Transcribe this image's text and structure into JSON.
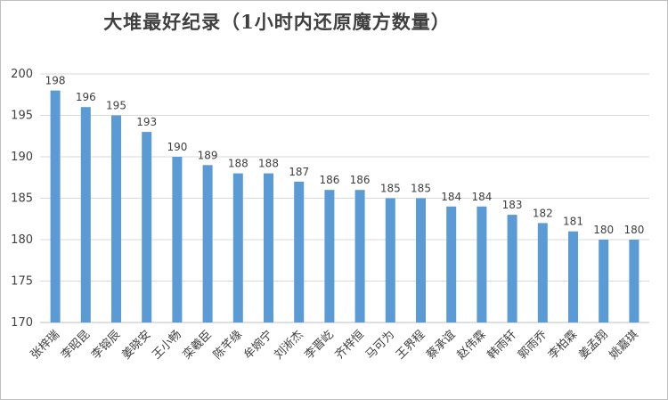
{
  "chart_data": {
    "type": "bar",
    "title": "大堆最好纪录（1小时内还原魔方数量）",
    "xlabel": "",
    "ylabel": "",
    "categories": [
      "张梓瑞",
      "李昭昆",
      "李镕辰",
      "姜晓安",
      "王小畅",
      "栾羲臣",
      "陈芊缘",
      "牟婉宁",
      "刘淅杰",
      "李晋屹",
      "齐梓恒",
      "马可为",
      "王界程",
      "蔡承谊",
      "赵伟霖",
      "韩雨轩",
      "郭雨乔",
      "李柏霖",
      "姜孟翔",
      "姚嘉琪"
    ],
    "series": [
      {
        "values": [
          198,
          196,
          195,
          193,
          190,
          189,
          188,
          188,
          187,
          186,
          186,
          185,
          185,
          184,
          184,
          183,
          182,
          181,
          180,
          180
        ]
      }
    ],
    "ylim": [
      170,
      200
    ],
    "yticks": [
      170,
      175,
      180,
      185,
      190,
      195,
      200
    ],
    "grid": true,
    "legend": "none",
    "data_labels": true,
    "colors": {
      "bar": "#5b9bd5",
      "grid": "#d9d9d9",
      "axis": "#bfbfbf",
      "text": "#404040"
    }
  }
}
